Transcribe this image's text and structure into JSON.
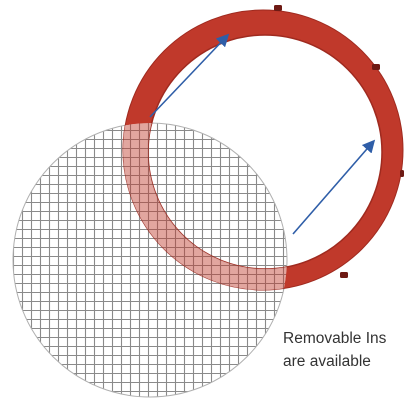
{
  "caption": {
    "line1": "Removable Ins",
    "line2": "are available"
  },
  "colors": {
    "gasket_red": "#c0392b",
    "gasket_red_dark": "#9f2a1f",
    "tab_dark": "#6e1a14",
    "mesh_lines": "#8a8a8a",
    "arrow_blue": "#2f5ea8",
    "caption_text": "#333333"
  },
  "icons": {
    "mesh": "wire-mesh-screen-icon",
    "gasket": "red-gasket-ring-icon",
    "arrows": "insert-direction-arrow-icon"
  }
}
